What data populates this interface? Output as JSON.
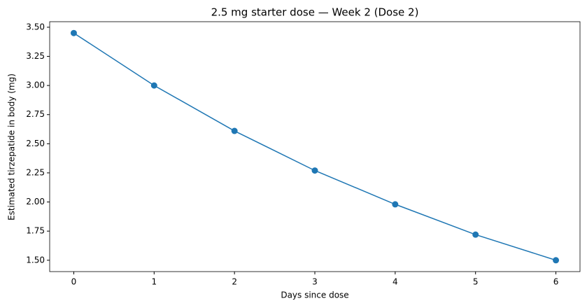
{
  "chart_data": {
    "type": "line",
    "title": "2.5 mg starter dose — Week 2 (Dose 2)",
    "x_label": "Days since dose",
    "y_label": "Estimated tirzepatide in body (mg)",
    "x": [
      0,
      1,
      2,
      3,
      4,
      5,
      6
    ],
    "series": [
      {
        "color": "#1f77b4",
        "values": [
          3.45,
          3.0,
          2.61,
          2.27,
          1.98,
          1.72,
          1.5
        ]
      }
    ],
    "xlim": [
      -0.3,
      6.3
    ],
    "ylim": [
      1.4025,
      3.5475
    ],
    "xticks": [
      0,
      1,
      2,
      3,
      4,
      5,
      6
    ],
    "yticks": [
      {
        "value": 1.5,
        "label": "1.50"
      },
      {
        "value": 1.75,
        "label": "1.75"
      },
      {
        "value": 2.0,
        "label": "2.00"
      },
      {
        "value": 2.25,
        "label": "2.25"
      },
      {
        "value": 2.5,
        "label": "2.50"
      },
      {
        "value": 2.75,
        "label": "2.75"
      },
      {
        "value": 3.0,
        "label": "3.00"
      },
      {
        "value": 3.25,
        "label": "3.25"
      },
      {
        "value": 3.5,
        "label": "3.50"
      }
    ],
    "grid": false
  }
}
